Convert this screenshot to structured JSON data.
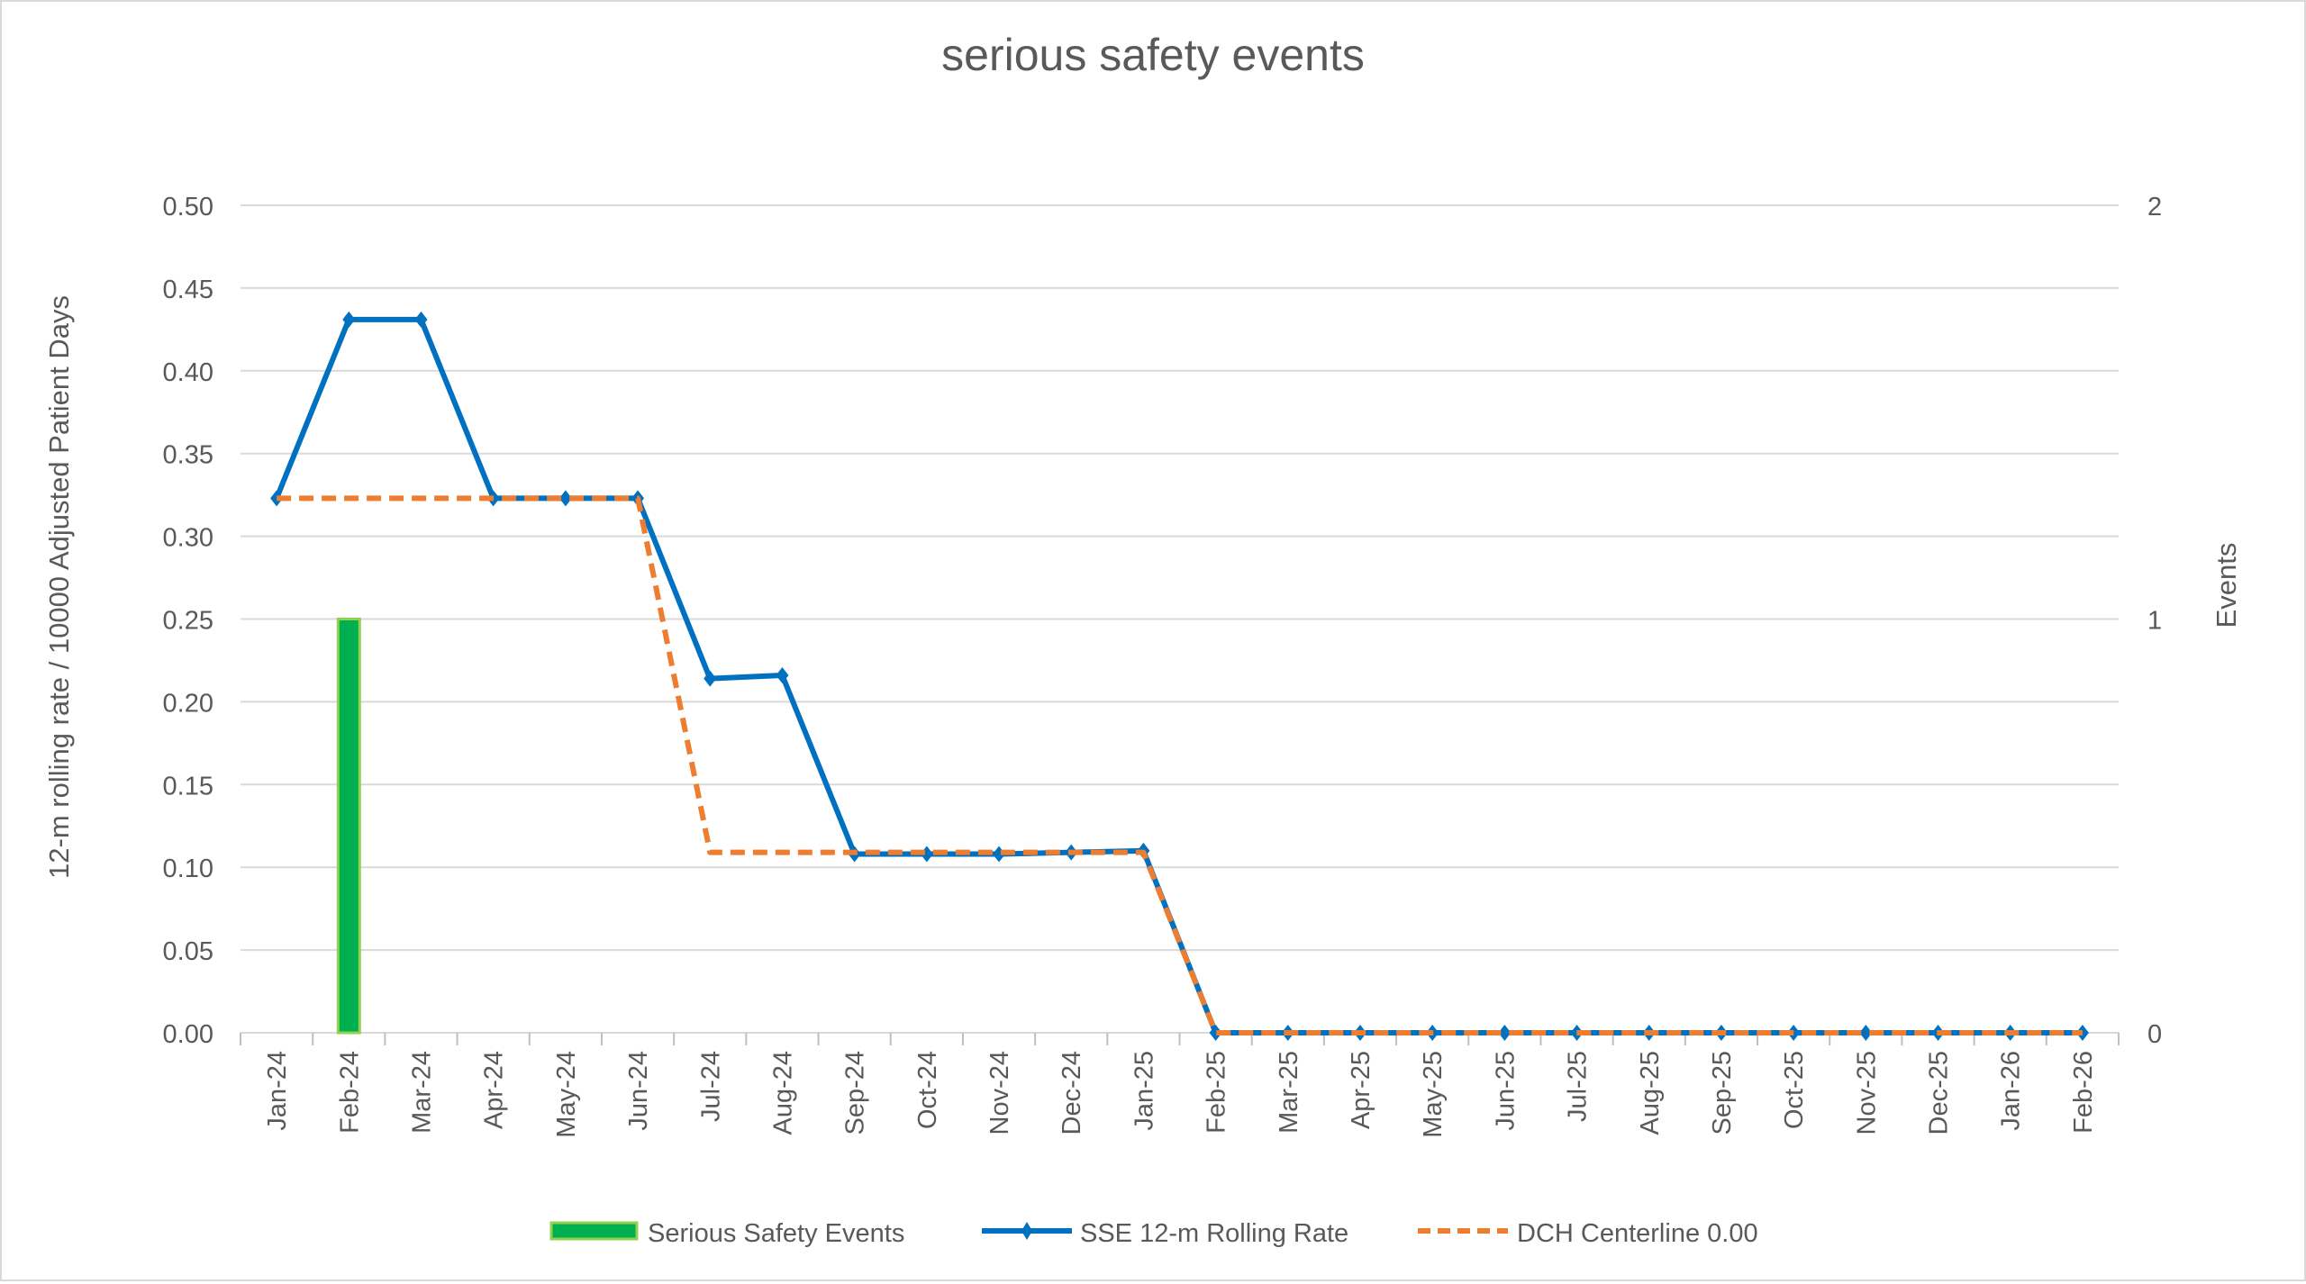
{
  "chart_data": {
    "type": "bar+line",
    "title": "serious safety events",
    "ylabel": "12-m rolling rate / 10000 Adjusted Patient Days",
    "y2label": "Events",
    "ylim": [
      0,
      0.5
    ],
    "y2lim": [
      0,
      2
    ],
    "yticks": [
      "0.00",
      "0.05",
      "0.10",
      "0.15",
      "0.20",
      "0.25",
      "0.30",
      "0.35",
      "0.40",
      "0.45",
      "0.50"
    ],
    "y2ticks": [
      "0",
      "1",
      "2"
    ],
    "grid": true,
    "legend_position": "bottom",
    "categories": [
      "Jan-24",
      "Feb-24",
      "Mar-24",
      "Apr-24",
      "May-24",
      "Jun-24",
      "Jul-24",
      "Aug-24",
      "Sep-24",
      "Oct-24",
      "Nov-24",
      "Dec-24",
      "Jan-25",
      "Feb-25",
      "Mar-25",
      "Apr-25",
      "May-25",
      "Jun-25",
      "Jul-25",
      "Aug-25",
      "Sep-25",
      "Oct-25",
      "Nov-25",
      "Dec-25",
      "Jan-26",
      "Feb-26"
    ],
    "series": [
      {
        "name": "Serious Safety Events",
        "type": "bar",
        "axis": "right",
        "color": "#00b050",
        "values": [
          null,
          1,
          null,
          null,
          null,
          null,
          null,
          null,
          null,
          null,
          null,
          null,
          null,
          null,
          null,
          null,
          null,
          null,
          null,
          null,
          null,
          null,
          null,
          null,
          null,
          null
        ]
      },
      {
        "name": "SSE 12-m Rolling Rate",
        "type": "line",
        "axis": "left",
        "color": "#0070c0",
        "marker": "diamond",
        "values": [
          0.323,
          0.431,
          0.431,
          0.323,
          0.323,
          0.323,
          0.214,
          0.216,
          0.108,
          0.108,
          0.108,
          0.109,
          0.11,
          0,
          0,
          0,
          0,
          0,
          0,
          0,
          0,
          0,
          0,
          0,
          0,
          0
        ]
      },
      {
        "name": "DCH Centerline 0.00",
        "type": "line",
        "axis": "left",
        "color": "#ed7d31",
        "dash": true,
        "values": [
          0.323,
          0.323,
          0.323,
          0.323,
          0.323,
          0.323,
          0.109,
          0.109,
          0.109,
          0.109,
          0.109,
          0.109,
          0.109,
          0,
          0,
          0,
          0,
          0,
          0,
          0,
          0,
          0,
          0,
          0,
          0,
          0
        ]
      }
    ]
  }
}
